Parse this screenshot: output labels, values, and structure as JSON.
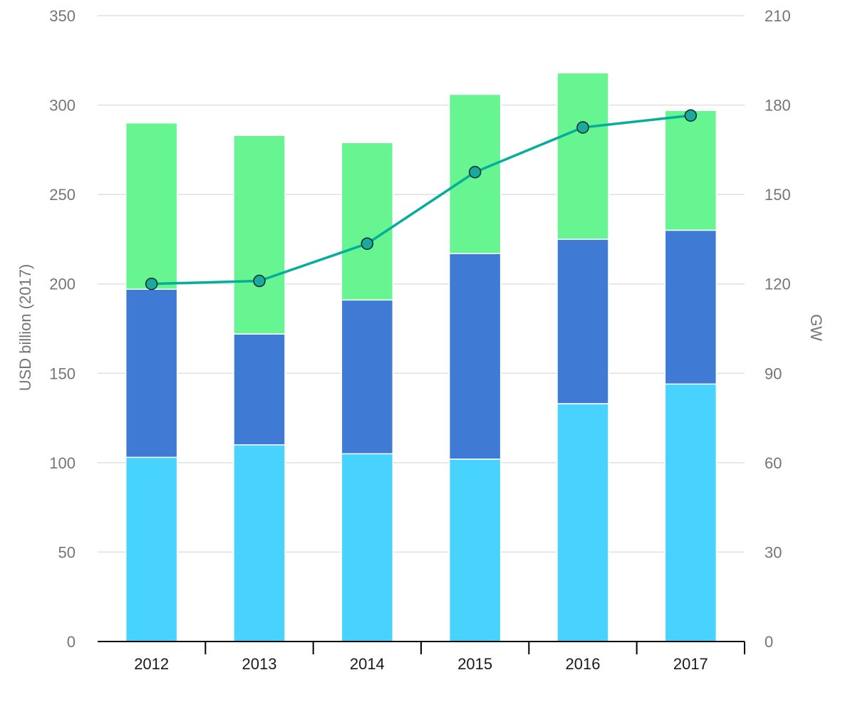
{
  "chart_data": {
    "type": "bar",
    "stacked": true,
    "categories": [
      "2012",
      "2013",
      "2014",
      "2015",
      "2016",
      "2017"
    ],
    "series": [
      {
        "values": [
          103,
          110,
          105,
          102,
          133,
          144
        ],
        "color": "#48d3fe"
      },
      {
        "values": [
          94,
          62,
          86,
          115,
          92,
          86
        ],
        "color": "#3f7bd4"
      },
      {
        "values": [
          93,
          111,
          88,
          89,
          93,
          67
        ],
        "color": "#67f591"
      }
    ],
    "line_series": {
      "axis": "right",
      "values": [
        120,
        121,
        133.5,
        157.5,
        172.5,
        176.5
      ],
      "color": "#06ad9b",
      "marker_fill": "#1aa99a"
    },
    "ylabel": "USD billion (2017)",
    "ylabel_right": "GW",
    "ylim": [
      0,
      350
    ],
    "yticks": [
      "0",
      "50",
      "100",
      "150",
      "200",
      "250",
      "300",
      "350"
    ],
    "ylim_right": [
      0,
      210
    ],
    "yticks_right": [
      "0",
      "30",
      "60",
      "90",
      "120",
      "150",
      "180",
      "210"
    ],
    "grid": true,
    "legend": "none"
  }
}
